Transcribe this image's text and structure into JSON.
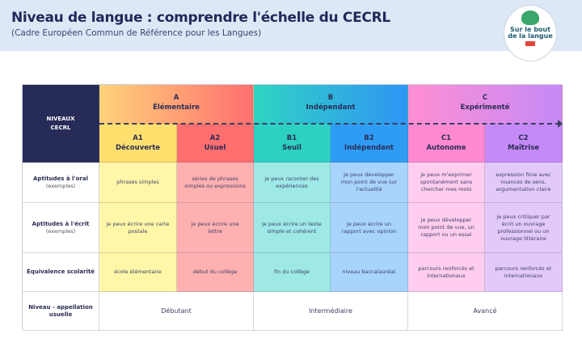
{
  "header": {
    "title": "Niveau de langue : comprendre l'échelle du CECRL",
    "subtitle": "(Cadre Européen Commun de Référence pour les Langues)",
    "logo_text": [
      "Sur le bout",
      "de la langue"
    ]
  },
  "table": {
    "corner": [
      "NIVEAUX",
      "CECRL"
    ],
    "groups": [
      {
        "letter": "A",
        "name": "Élémentaire"
      },
      {
        "letter": "B",
        "name": "Indépendant"
      },
      {
        "letter": "C",
        "name": "Expérimenté"
      }
    ],
    "levels": [
      {
        "code": "A1",
        "name": "Découverte"
      },
      {
        "code": "A2",
        "name": "Usuel"
      },
      {
        "code": "B1",
        "name": "Seuil"
      },
      {
        "code": "B2",
        "name": "Indépendant"
      },
      {
        "code": "C1",
        "name": "Autonome"
      },
      {
        "code": "C2",
        "name": "Maîtrise"
      }
    ],
    "rows": [
      {
        "label": "Aptitudes à l'oral",
        "sub": "(exemples)",
        "cells": [
          "phrases simples",
          "séries de phrases simples ou expressions",
          "je peux raconter des expériences",
          "je peux développer mon point de vue sur l'actualité",
          "je peux m'exprimer spontanément sans chercher mes mots",
          "expression finie avec nuances de sens, argumentation claire"
        ]
      },
      {
        "label": "Aptitudes à l'écrit",
        "sub": "(exemples)",
        "cells": [
          "je peux écrire une carte postale",
          "je peux écrire une lettre",
          "je peux écrire un texte simple et cohérent",
          "je peux écrire un rapport avec opinion",
          "je peux développer mon point de vue, un rapport ou un essai",
          "je peux critiquer par écrit un ouvrage professionnel ou un ouvrage littéraire"
        ]
      },
      {
        "label": "Équivalence scolarité",
        "sub": "",
        "cells": [
          "école élémentaire",
          "début du collège",
          "fin du collège",
          "niveau baccalauréat",
          "parcours renforcés et internationaux",
          "parcours renforcés et internationaux"
        ]
      }
    ],
    "usual": {
      "label": "Niveau - appellation usuelle",
      "values": [
        "Débutant",
        "Intermédiaire",
        "Avancé"
      ]
    }
  },
  "colors": {
    "corner": "#262b57",
    "A1": "#ffe070",
    "A2": "#ff7070",
    "B1": "#2dd1c4",
    "B2": "#2f9cf4",
    "C1": "#ff8ad1",
    "C2": "#c58af7"
  }
}
